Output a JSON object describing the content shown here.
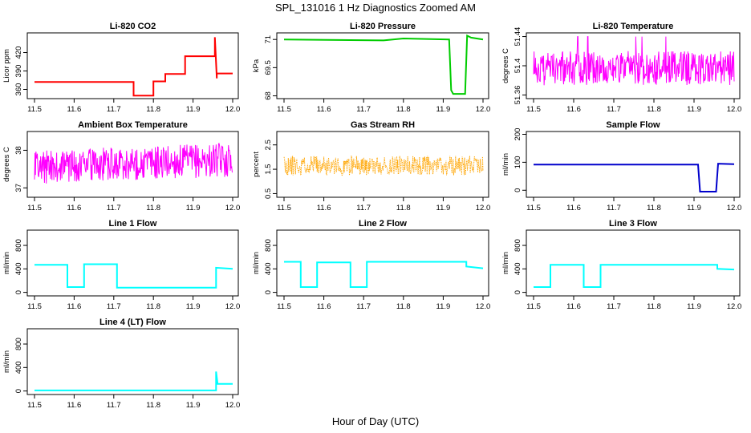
{
  "figure": {
    "title": "SPL_131016  1 Hz Diagnostics Zoomed AM",
    "xlabel": "Hour of Day (UTC)"
  },
  "chart_data": [
    {
      "id": "co2",
      "type": "line",
      "title": "Li-820 CO2",
      "ylabel": "Licor ppm",
      "color": "#ff0000",
      "xlim": [
        11.5,
        12.0
      ],
      "ylim": [
        345,
        452
      ],
      "yticks": [
        360,
        390,
        420
      ],
      "xticks": [
        11.5,
        11.6,
        11.7,
        11.8,
        11.9,
        12.0
      ],
      "style": "step",
      "series": [
        {
          "x": [
            11.5,
            11.75,
            11.75,
            11.8,
            11.8,
            11.83,
            11.83,
            11.88,
            11.88,
            11.955,
            11.955,
            11.96,
            11.96,
            12.0
          ],
          "y": [
            372,
            372,
            350,
            350,
            373,
            373,
            385,
            385,
            414,
            414,
            445,
            378,
            386,
            386
          ]
        }
      ]
    },
    {
      "id": "pressure",
      "type": "line",
      "title": "Li-820 Pressure",
      "ylabel": "kPa",
      "color": "#00cc00",
      "xlim": [
        11.5,
        12.0
      ],
      "ylim": [
        67.85,
        71.35
      ],
      "yticks": [
        68.0,
        69.5,
        71.0
      ],
      "xticks": [
        11.5,
        11.6,
        11.7,
        11.8,
        11.9,
        12.0
      ],
      "style": "step",
      "series": [
        {
          "x": [
            11.5,
            11.75,
            11.8,
            11.915,
            11.92,
            11.925,
            11.955,
            11.96,
            11.97,
            12.0
          ],
          "y": [
            71.0,
            70.95,
            71.05,
            71.0,
            68.3,
            68.1,
            68.1,
            71.2,
            71.1,
            71.0
          ]
        }
      ]
    },
    {
      "id": "licor_temp",
      "type": "line",
      "title": "Li-820 Temperature",
      "ylabel": "degrees C",
      "color": "#ff00ff",
      "xlim": [
        11.5,
        12.0
      ],
      "ylim": [
        51.355,
        51.445
      ],
      "yticks": [
        51.36,
        51.4,
        51.44
      ],
      "xticks": [
        11.5,
        11.6,
        11.7,
        11.8,
        11.9,
        12.0
      ],
      "style": "noise",
      "seed": 3,
      "base": 51.3965,
      "amp": 0.0235,
      "spike_to": 51.44,
      "spike_at": [
        11.61,
        11.635,
        11.755,
        11.77,
        11.83
      ]
    },
    {
      "id": "box_temp",
      "type": "line",
      "title": "Ambient Box Temperature",
      "ylabel": "degrees C",
      "color": "#ff00ff",
      "xlim": [
        11.5,
        12.0
      ],
      "ylim": [
        36.75,
        38.5
      ],
      "yticks": [
        37.0,
        38.0
      ],
      "xticks": [
        11.5,
        11.6,
        11.7,
        11.8,
        11.9,
        12.0
      ],
      "style": "noise",
      "seed": 7,
      "base": 37.55,
      "amp": 0.45,
      "drift": 0.2
    },
    {
      "id": "rh",
      "type": "line",
      "title": "Gas Stream RH",
      "ylabel": "percent",
      "color": "#ffa500",
      "xlim": [
        11.5,
        12.0
      ],
      "ylim": [
        0.35,
        3.05
      ],
      "yticks": [
        0.5,
        1.5,
        2.5
      ],
      "xticks": [
        11.5,
        11.6,
        11.7,
        11.8,
        11.9,
        12.0
      ],
      "style": "noise",
      "seed": 11,
      "base": 1.65,
      "amp": 0.4,
      "dotted": true
    },
    {
      "id": "sample_flow",
      "type": "line",
      "title": "Sample Flow",
      "ylabel": "ml/min",
      "color": "#0000cc",
      "xlim": [
        11.5,
        12.0
      ],
      "ylim": [
        -25,
        210
      ],
      "yticks": [
        0,
        100,
        200
      ],
      "xticks": [
        11.5,
        11.6,
        11.7,
        11.8,
        11.9,
        12.0
      ],
      "style": "step",
      "series": [
        {
          "x": [
            11.5,
            11.91,
            11.915,
            11.955,
            11.96,
            12.0
          ],
          "y": [
            92,
            92,
            -5,
            -5,
            95,
            93
          ]
        }
      ]
    },
    {
      "id": "line1",
      "type": "line",
      "title": "Line 1 Flow",
      "ylabel": "ml/min",
      "color": "#00ffff",
      "xlim": [
        11.5,
        12.0
      ],
      "ylim": [
        -60,
        1060
      ],
      "yticks": [
        0,
        400,
        800
      ],
      "xticks": [
        11.5,
        11.6,
        11.7,
        11.8,
        11.9,
        12.0
      ],
      "style": "step",
      "series": [
        {
          "x": [
            11.5,
            11.583,
            11.583,
            11.625,
            11.625,
            11.708,
            11.708,
            11.958,
            11.958,
            12.0
          ],
          "y": [
            470,
            470,
            90,
            90,
            480,
            480,
            80,
            80,
            420,
            400
          ]
        }
      ]
    },
    {
      "id": "line2",
      "type": "line",
      "title": "Line 2 Flow",
      "ylabel": "ml/min",
      "color": "#00ffff",
      "xlim": [
        11.5,
        12.0
      ],
      "ylim": [
        -60,
        1060
      ],
      "yticks": [
        0,
        400,
        800
      ],
      "xticks": [
        11.5,
        11.6,
        11.7,
        11.8,
        11.9,
        12.0
      ],
      "style": "step",
      "series": [
        {
          "x": [
            11.5,
            11.542,
            11.542,
            11.583,
            11.583,
            11.667,
            11.667,
            11.708,
            11.708,
            11.958,
            11.958,
            12.0
          ],
          "y": [
            520,
            520,
            90,
            90,
            510,
            510,
            90,
            90,
            520,
            520,
            440,
            410
          ]
        }
      ]
    },
    {
      "id": "line3",
      "type": "line",
      "title": "Line 3 Flow",
      "ylabel": "ml/min",
      "color": "#00ffff",
      "xlim": [
        11.5,
        12.0
      ],
      "ylim": [
        -60,
        1060
      ],
      "yticks": [
        0,
        400,
        800
      ],
      "xticks": [
        11.5,
        11.6,
        11.7,
        11.8,
        11.9,
        12.0
      ],
      "style": "step",
      "series": [
        {
          "x": [
            11.5,
            11.542,
            11.542,
            11.625,
            11.625,
            11.667,
            11.667,
            11.958,
            11.958,
            12.0
          ],
          "y": [
            90,
            90,
            470,
            470,
            90,
            90,
            470,
            470,
            400,
            390
          ]
        }
      ]
    },
    {
      "id": "line4",
      "type": "line",
      "title": "Line 4 (LT) Flow",
      "ylabel": "ml/min",
      "color": "#00ffff",
      "xlim": [
        11.5,
        12.0
      ],
      "ylim": [
        -60,
        1060
      ],
      "yticks": [
        0,
        400,
        800
      ],
      "xticks": [
        11.5,
        11.6,
        11.7,
        11.8,
        11.9,
        12.0
      ],
      "style": "step",
      "series": [
        {
          "x": [
            11.5,
            11.958,
            11.958,
            11.962,
            11.962,
            12.0
          ],
          "y": [
            10,
            10,
            330,
            120,
            120,
            120
          ]
        }
      ]
    }
  ]
}
